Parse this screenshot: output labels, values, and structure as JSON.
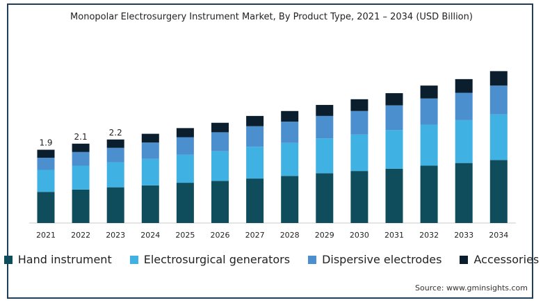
{
  "chart_data": {
    "type": "bar",
    "stacked": true,
    "title": "Monopolar Electrosurgery Instrument Market, By Product Type, 2021 – 2034 (USD Billion)",
    "categories": [
      "2021",
      "2022",
      "2023",
      "2024",
      "2025",
      "2026",
      "2027",
      "2028",
      "2029",
      "2030",
      "2031",
      "2032",
      "2033",
      "2034"
    ],
    "series": [
      {
        "name": "Hand instrument",
        "color": "#0f4c5c",
        "values": [
          0.82,
          0.88,
          0.94,
          0.99,
          1.06,
          1.11,
          1.17,
          1.24,
          1.31,
          1.37,
          1.43,
          1.51,
          1.58,
          1.66
        ]
      },
      {
        "name": "Electrosurgical generators",
        "color": "#3fb1e3",
        "values": [
          0.58,
          0.63,
          0.66,
          0.7,
          0.74,
          0.78,
          0.84,
          0.87,
          0.92,
          0.96,
          1.02,
          1.08,
          1.13,
          1.2
        ]
      },
      {
        "name": "Dispersive electrodes",
        "color": "#4c8fcf",
        "values": [
          0.32,
          0.36,
          0.38,
          0.43,
          0.46,
          0.5,
          0.54,
          0.56,
          0.59,
          0.62,
          0.65,
          0.69,
          0.72,
          0.76
        ]
      },
      {
        "name": "Accessories",
        "color": "#0a1e2e",
        "values": [
          0.21,
          0.22,
          0.22,
          0.23,
          0.24,
          0.25,
          0.27,
          0.28,
          0.29,
          0.31,
          0.32,
          0.34,
          0.36,
          0.38
        ]
      }
    ],
    "total_labels": [
      "1.9",
      "2.1",
      "2.2",
      "",
      "",
      "",
      "",
      "",
      "",
      "",
      "",
      "",
      "",
      ""
    ],
    "ylim": [
      0,
      4.3
    ],
    "legend_position": "bottom",
    "grid": false
  },
  "source": "Source: www.gminsights.com"
}
